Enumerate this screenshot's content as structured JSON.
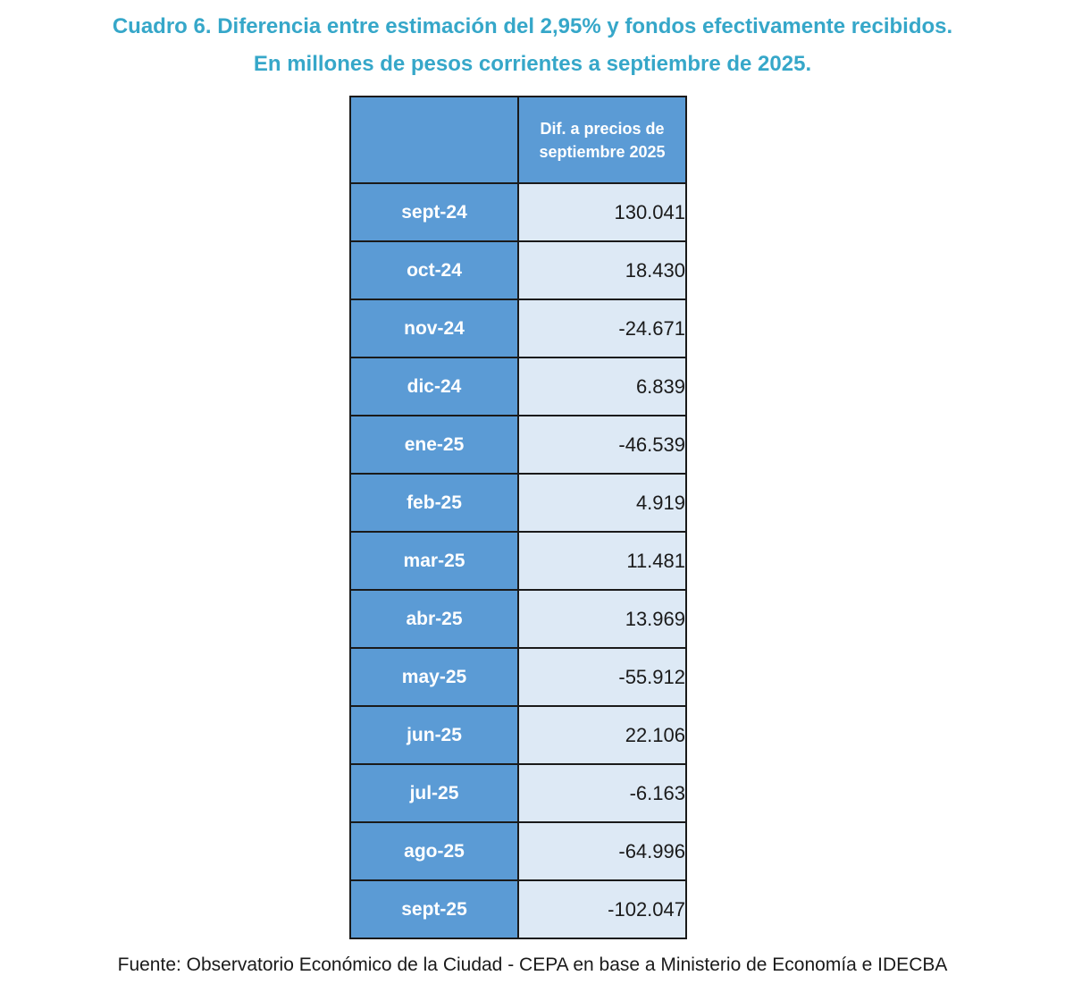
{
  "title": {
    "line1": "Cuadro 6. Diferencia entre estimación del 2,95% y fondos efectivamente recibidos.",
    "line2": "En millones de pesos corrientes a septiembre de 2025."
  },
  "table": {
    "column_header_line1": "Dif. a precios de",
    "column_header_line2": "septiembre 2025"
  },
  "source": "Fuente: Observatorio Económico de la Ciudad - CEPA en base a Ministerio de Economía e IDECBA",
  "colors": {
    "title": "#36a7c9",
    "header_fill": "#5b9bd5",
    "value_fill": "#dde9f5"
  },
  "chart_data": {
    "type": "table",
    "columns": [
      "",
      "Dif. a precios de septiembre 2025"
    ],
    "rows": [
      {
        "label": "sept-24",
        "value": "130.041"
      },
      {
        "label": "oct-24",
        "value": "18.430"
      },
      {
        "label": "nov-24",
        "value": "-24.671"
      },
      {
        "label": "dic-24",
        "value": "6.839"
      },
      {
        "label": "ene-25",
        "value": "-46.539"
      },
      {
        "label": "feb-25",
        "value": "4.919"
      },
      {
        "label": "mar-25",
        "value": "11.481"
      },
      {
        "label": "abr-25",
        "value": "13.969"
      },
      {
        "label": "may-25",
        "value": "-55.912"
      },
      {
        "label": "jun-25",
        "value": "22.106"
      },
      {
        "label": "jul-25",
        "value": "-6.163"
      },
      {
        "label": "ago-25",
        "value": "-64.996"
      },
      {
        "label": "sept-25",
        "value": "-102.047"
      }
    ]
  }
}
